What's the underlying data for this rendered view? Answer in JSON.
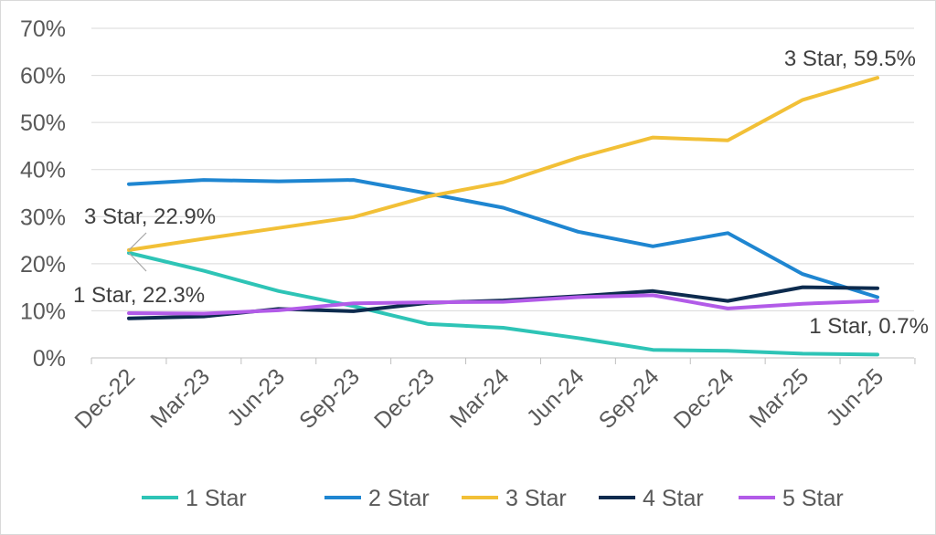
{
  "chart_data": {
    "type": "line",
    "categories": [
      "Dec-22",
      "Mar-23",
      "Jun-23",
      "Sep-23",
      "Dec-23",
      "Mar-24",
      "Jun-24",
      "Sep-24",
      "Dec-24",
      "Mar-25",
      "Jun-25"
    ],
    "y_tick_labels": [
      "0%",
      "10%",
      "20%",
      "30%",
      "40%",
      "50%",
      "60%",
      "70%"
    ],
    "ylim": [
      0,
      70
    ],
    "y_unit": "%",
    "grid": "horizontal",
    "legend_position": "bottom",
    "series": [
      {
        "name": "1 Star",
        "color": "#2ec4b6",
        "values": [
          22.3,
          18.5,
          14.2,
          11.0,
          7.2,
          6.4,
          4.2,
          1.7,
          1.5,
          0.9,
          0.7
        ]
      },
      {
        "name": "2 Star",
        "color": "#1f86d1",
        "values": [
          36.9,
          37.8,
          37.5,
          37.8,
          34.9,
          31.9,
          26.8,
          23.7,
          26.5,
          17.8,
          12.9
        ]
      },
      {
        "name": "3 Star",
        "color": "#f2c037",
        "values": [
          22.9,
          25.3,
          27.6,
          29.9,
          34.3,
          37.3,
          42.5,
          46.8,
          46.2,
          54.8,
          59.5
        ]
      },
      {
        "name": "4 Star",
        "color": "#0d2b4e",
        "values": [
          8.4,
          8.8,
          10.4,
          9.9,
          11.7,
          12.2,
          13.1,
          14.2,
          12.1,
          15.0,
          14.8
        ]
      },
      {
        "name": "5 Star",
        "color": "#b25be8",
        "values": [
          9.5,
          9.4,
          10.1,
          11.6,
          11.8,
          11.9,
          12.9,
          13.3,
          10.5,
          11.5,
          12.1
        ]
      }
    ],
    "annotations": [
      {
        "text": "3 Star, 22.9%",
        "series": "3 Star",
        "category": "Dec-22"
      },
      {
        "text": "1 Star, 22.3%",
        "series": "1 Star",
        "category": "Dec-22"
      },
      {
        "text": "3 Star, 59.5%",
        "series": "3 Star",
        "category": "Jun-25"
      },
      {
        "text": "1 Star, 0.7%",
        "series": "1 Star",
        "category": "Jun-25"
      }
    ]
  }
}
